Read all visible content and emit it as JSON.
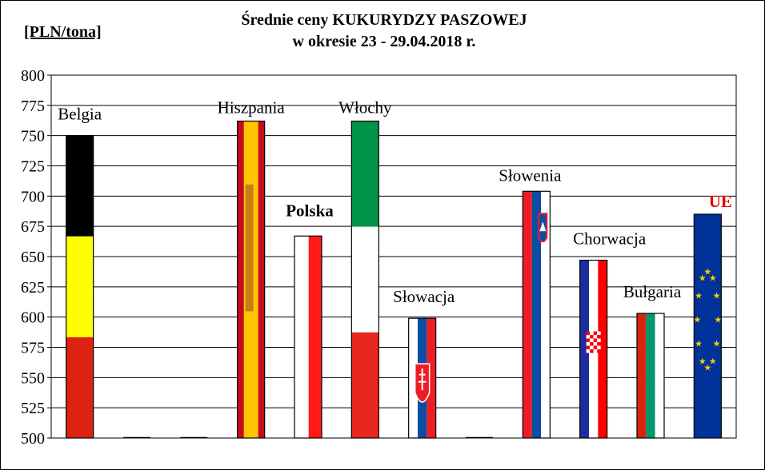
{
  "chart_data": {
    "type": "bar",
    "title": "Średnie ceny KUKURYDZY PASZOWEJ",
    "subtitle": "w okresie  23 - 29.04.2018 r.",
    "ylabel": "[PLN/tona]",
    "xlabel": "",
    "ylim": [
      500,
      800
    ],
    "yticks": [
      500,
      525,
      550,
      575,
      600,
      625,
      650,
      675,
      700,
      725,
      750,
      775,
      800
    ],
    "grid": true,
    "legend": "none",
    "categories": [
      "Belgia",
      "",
      "",
      "Hiszpania",
      "Polska",
      "Włochy",
      "Słowacja",
      "",
      "Słowenia",
      "Chorwacja",
      "Bułgaria",
      "UE"
    ],
    "values": [
      750,
      500,
      500,
      762,
      667,
      762,
      599,
      500,
      704,
      647,
      603,
      685
    ],
    "flags": [
      "belgium",
      "none",
      "none",
      "spain",
      "poland",
      "italy",
      "slovakia",
      "none",
      "slovenia",
      "croatia",
      "bulgaria",
      "eu"
    ],
    "label_styles": {
      "Polska": {
        "bold": true,
        "color": "#000000"
      },
      "UE": {
        "bold": true,
        "color": "#e00000"
      }
    }
  }
}
